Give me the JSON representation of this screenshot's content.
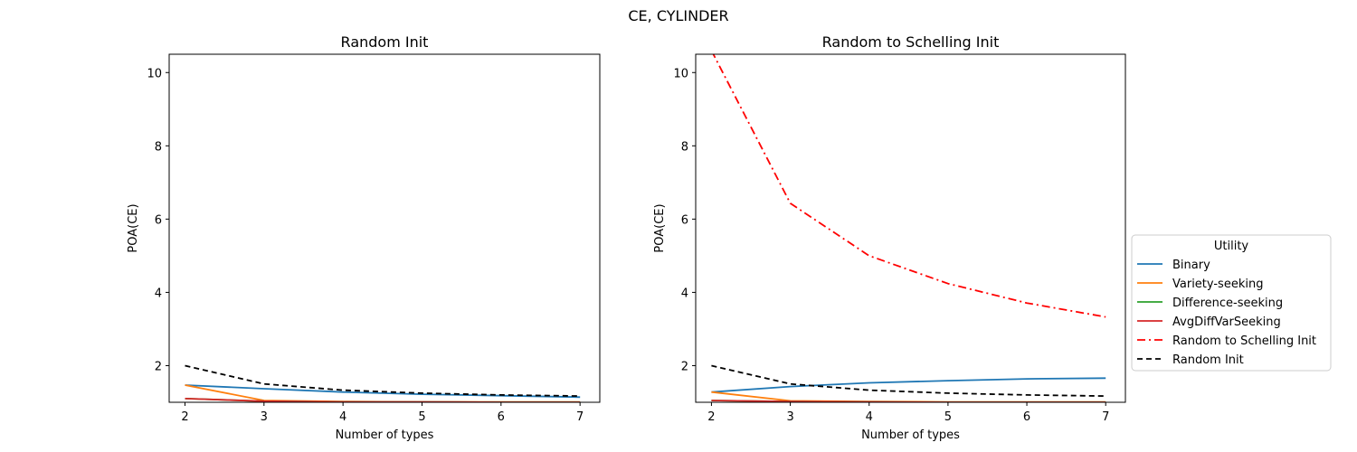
{
  "suptitle": "CE, CYLINDER",
  "legend": {
    "title": "Utility",
    "entries": [
      {
        "label": "Binary",
        "color": "#1f77b4",
        "dash": "solid"
      },
      {
        "label": "Variety-seeking",
        "color": "#ff7f0e",
        "dash": "solid"
      },
      {
        "label": "Difference-seeking",
        "color": "#2ca02c",
        "dash": "solid"
      },
      {
        "label": "AvgDiffVarSeeking",
        "color": "#d62728",
        "dash": "solid"
      },
      {
        "label": "Random to Schelling Init",
        "color": "#ff0000",
        "dash": "dashdot"
      },
      {
        "label": "Random Init",
        "color": "#000000",
        "dash": "dashed"
      }
    ]
  },
  "chart_data": [
    {
      "type": "line",
      "title": "Random Init",
      "xlabel": "Number of types",
      "ylabel": "POA(CE)",
      "x": [
        2,
        3,
        4,
        5,
        6,
        7
      ],
      "xlim": [
        1.8,
        7.25
      ],
      "ylim": [
        1.0,
        10.5
      ],
      "yticks": [
        2,
        4,
        6,
        8,
        10
      ],
      "series": [
        {
          "name": "Binary",
          "color": "#1f77b4",
          "dash": "solid",
          "values": [
            1.47,
            1.37,
            1.28,
            1.22,
            1.18,
            1.14
          ]
        },
        {
          "name": "Variety-seeking",
          "color": "#ff7f0e",
          "dash": "solid",
          "values": [
            1.47,
            1.05,
            1.02,
            1.01,
            1.01,
            1.01
          ]
        },
        {
          "name": "Difference-seeking",
          "color": "#2ca02c",
          "dash": "solid",
          "values": [
            1.1,
            1.03,
            1.01,
            1.01,
            1.0,
            1.0
          ]
        },
        {
          "name": "AvgDiffVarSeeking",
          "color": "#d62728",
          "dash": "solid",
          "values": [
            1.1,
            1.03,
            1.01,
            1.01,
            1.0,
            1.0
          ]
        },
        {
          "name": "Random Init",
          "color": "#000000",
          "dash": "dashed",
          "values": [
            2.0,
            1.5,
            1.33,
            1.25,
            1.2,
            1.17
          ]
        }
      ]
    },
    {
      "type": "line",
      "title": "Random to Schelling Init",
      "xlabel": "Number of types",
      "ylabel": "POA(CE)",
      "x": [
        2,
        3,
        4,
        5,
        6,
        7
      ],
      "xlim": [
        1.8,
        7.25
      ],
      "ylim": [
        1.0,
        10.5
      ],
      "yticks": [
        2,
        4,
        6,
        8,
        10
      ],
      "series": [
        {
          "name": "Binary",
          "color": "#1f77b4",
          "dash": "solid",
          "values": [
            1.28,
            1.43,
            1.53,
            1.59,
            1.64,
            1.66
          ]
        },
        {
          "name": "Variety-seeking",
          "color": "#ff7f0e",
          "dash": "solid",
          "values": [
            1.28,
            1.04,
            1.02,
            1.01,
            1.01,
            1.01
          ]
        },
        {
          "name": "Difference-seeking",
          "color": "#2ca02c",
          "dash": "solid",
          "values": [
            1.05,
            1.02,
            1.01,
            1.0,
            1.0,
            1.0
          ]
        },
        {
          "name": "AvgDiffVarSeeking",
          "color": "#d62728",
          "dash": "solid",
          "values": [
            1.05,
            1.02,
            1.01,
            1.0,
            1.0,
            1.0
          ]
        },
        {
          "name": "Random to Schelling Init",
          "color": "#ff0000",
          "dash": "dashdot",
          "values": [
            10.6,
            6.43,
            5.0,
            4.24,
            3.71,
            3.33
          ]
        },
        {
          "name": "Random Init",
          "color": "#000000",
          "dash": "dashed",
          "values": [
            2.0,
            1.5,
            1.33,
            1.25,
            1.2,
            1.17
          ]
        }
      ]
    }
  ]
}
